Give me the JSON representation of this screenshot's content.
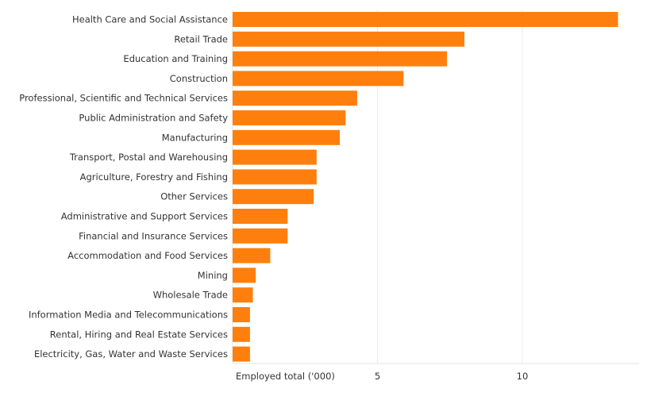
{
  "chart_data": {
    "type": "bar",
    "orientation": "horizontal",
    "categories": [
      "Health Care and Social Assistance",
      "Retail Trade",
      "Education and Training",
      "Construction",
      "Professional, Scientific and Technical Services",
      "Public Administration and Safety",
      "Manufacturing",
      "Transport, Postal and Warehousing",
      "Agriculture, Forestry and Fishing",
      "Other Services",
      "Administrative and Support Services",
      "Financial and Insurance Services",
      "Accommodation and Food Services",
      "Mining",
      "Wholesale Trade",
      "Information Media and Telecommunications",
      "Rental, Hiring and Real Estate Services",
      "Electricity, Gas, Water and Waste Services"
    ],
    "values": [
      13.3,
      8.0,
      7.4,
      5.9,
      4.3,
      3.9,
      3.7,
      2.9,
      2.9,
      2.8,
      1.9,
      1.9,
      1.3,
      0.8,
      0.7,
      0.6,
      0.6,
      0.6
    ],
    "xlabel": "Employed total ('000)",
    "xlim": [
      0,
      14
    ],
    "xticks": [
      5,
      10
    ],
    "grid": true,
    "bar_color": "#ff7f0e",
    "grid_color": "#ececec"
  }
}
